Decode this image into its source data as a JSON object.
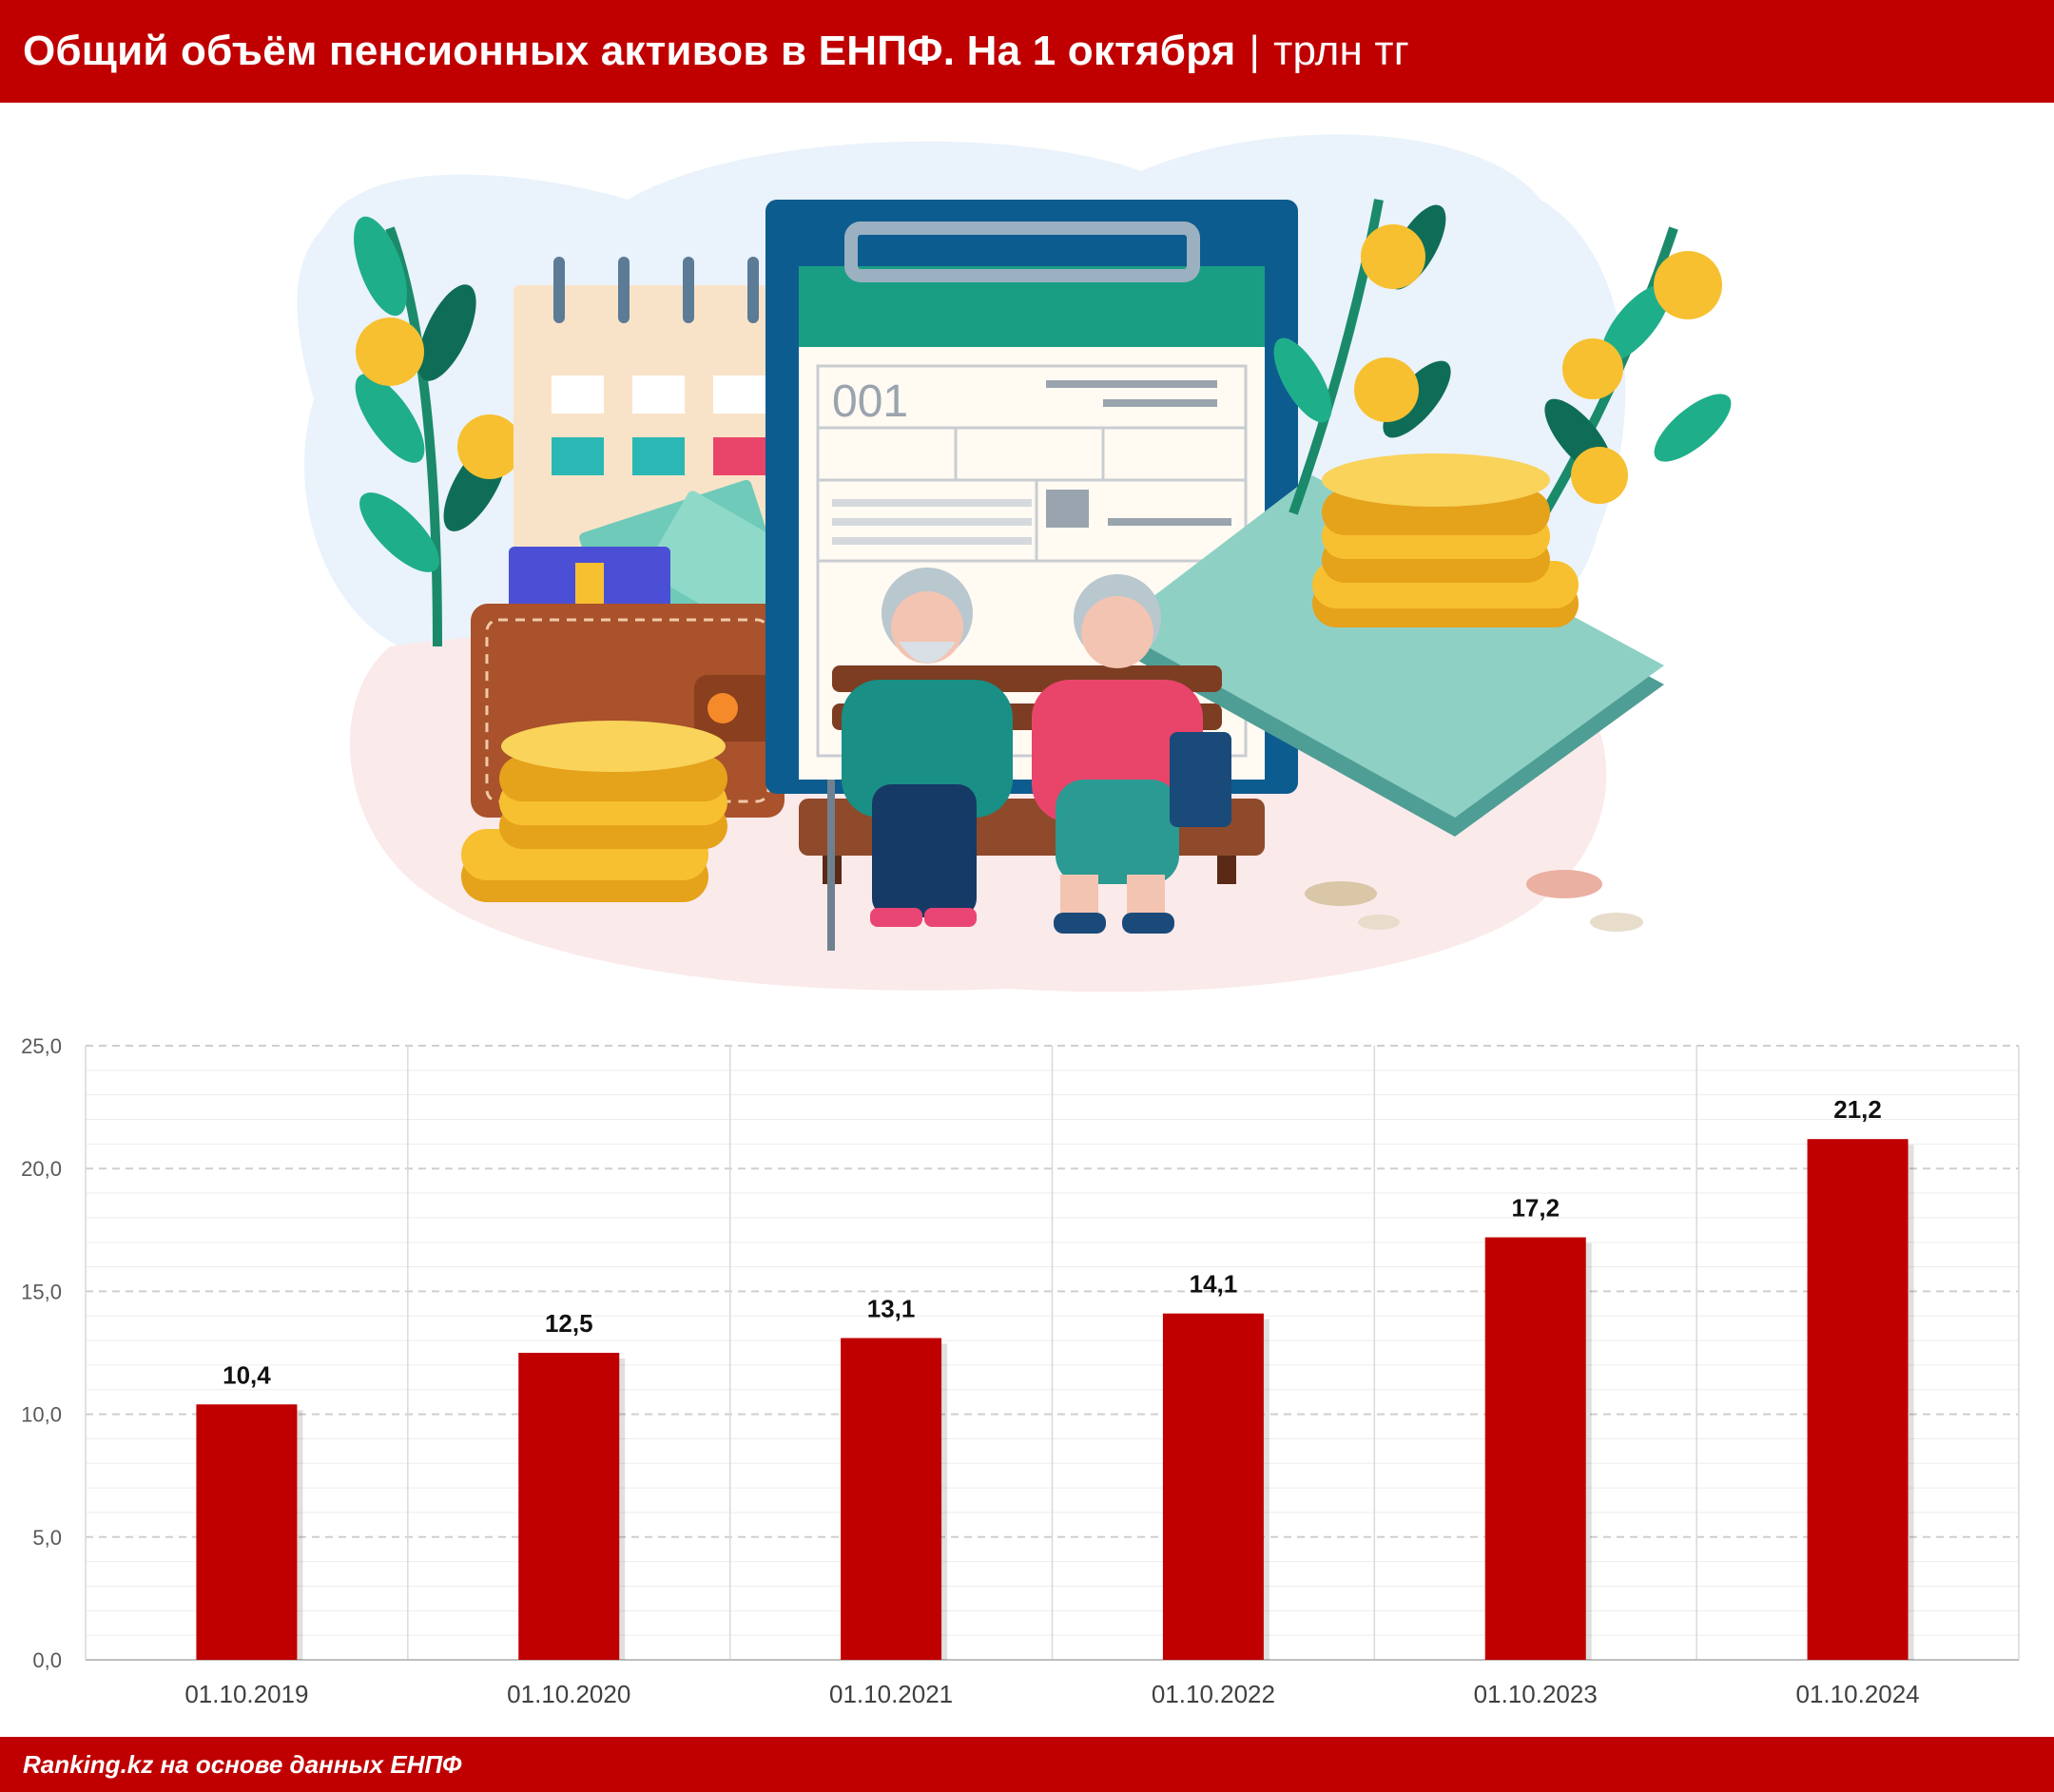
{
  "header": {
    "title": "Общий объём пенсионных активов в ЕНПФ. На 1 октября",
    "separator": "|",
    "unit": "трлн тг"
  },
  "illustration": {
    "form_number": "001"
  },
  "footer": {
    "source": "Ranking.kz на основе данных ЕНПФ"
  },
  "colors": {
    "brand_red": "#c00000",
    "bar": "#c00000",
    "grid": "#d9d9d9"
  },
  "chart_data": {
    "type": "bar",
    "categories": [
      "01.10.2019",
      "01.10.2020",
      "01.10.2021",
      "01.10.2022",
      "01.10.2023",
      "01.10.2024"
    ],
    "values": [
      10.4,
      12.5,
      13.1,
      14.1,
      17.2,
      21.2
    ],
    "value_labels": [
      "10,4",
      "12,5",
      "13,1",
      "14,1",
      "17,2",
      "21,2"
    ],
    "y_ticks": [
      "0,0",
      "5,0",
      "10,0",
      "15,0",
      "20,0",
      "25,0"
    ],
    "ylim": [
      0,
      25
    ],
    "title": "",
    "xlabel": "",
    "ylabel": "",
    "grid": true,
    "legend": "none"
  }
}
